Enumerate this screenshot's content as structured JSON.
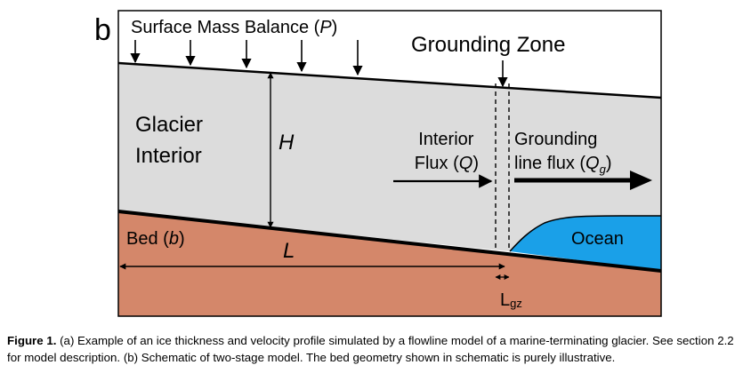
{
  "panel_label": "b",
  "labels": {
    "smb_text": "Surface Mass Balance (",
    "smb_var": "P",
    "smb_close": ")",
    "grounding_zone": "Grounding Zone",
    "glacier_line1": "Glacier",
    "glacier_line2": "Interior",
    "thickness": "H",
    "interior_flux_line1": "Interior",
    "interior_flux_line2_a": "Flux (",
    "interior_flux_var": "Q",
    "interior_flux_line2_b": ")",
    "gl_flux_line1": "Grounding",
    "gl_flux_line2_a": "line flux (",
    "gl_flux_var": "Q",
    "gl_flux_sub": "g",
    "gl_flux_line2_b": ")",
    "ocean": "Ocean",
    "bed_a": "Bed (",
    "bed_var": "b",
    "bed_b": ")",
    "length": "L",
    "lgz_main": "L",
    "lgz_sub": "gz"
  },
  "caption": {
    "label": "Figure 1.",
    "text": " (a) Example of an ice thickness and velocity profile simulated by a flowline model of a marine-terminating glacier. See section 2.2 for model description. (b) Schematic of two-stage model. The bed geometry shown in schematic is purely illustrative."
  },
  "colors": {
    "ice": "#dcdcdc",
    "bed": "#d4876a",
    "ocean": "#1aa0e8",
    "outline": "#000000"
  }
}
